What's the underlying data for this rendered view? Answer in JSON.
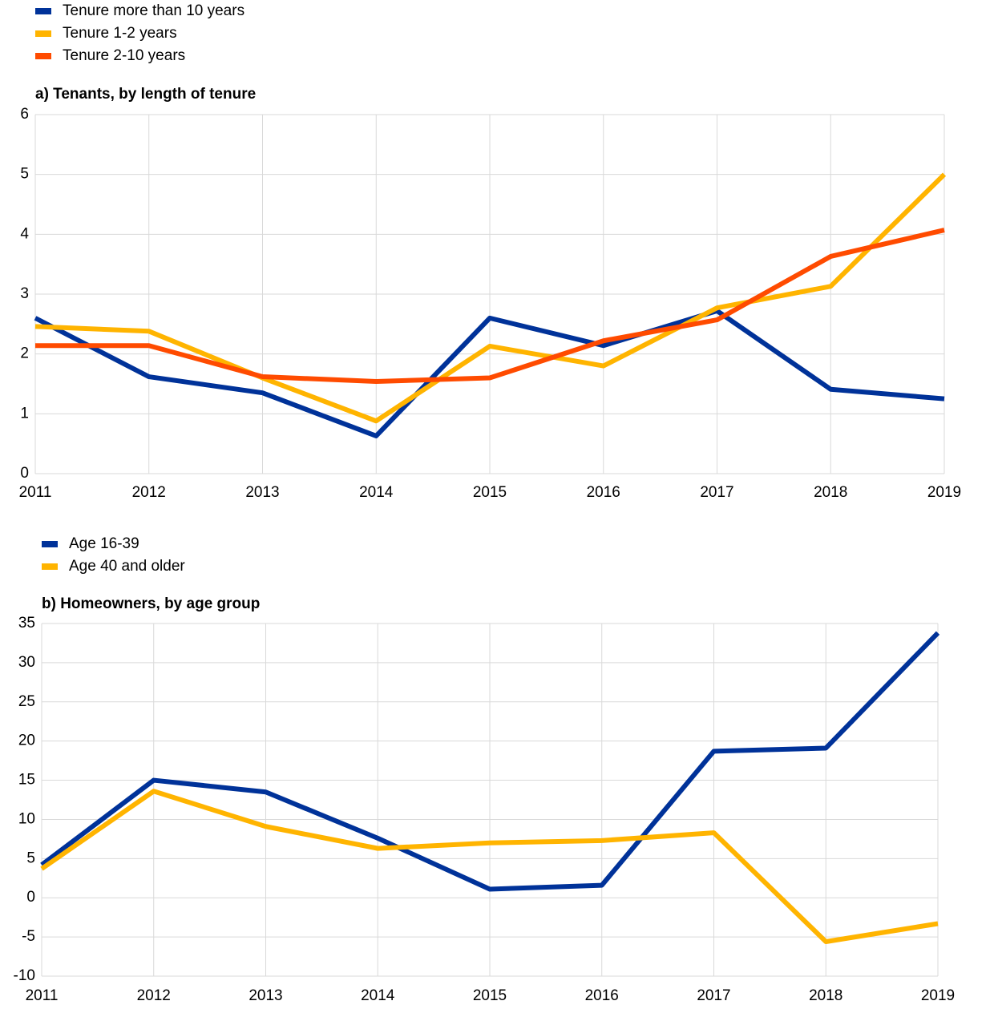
{
  "chart_data": [
    {
      "type": "line",
      "title": "a) Tenants, by length of tenure",
      "categories": [
        "2011",
        "2012",
        "2013",
        "2014",
        "2015",
        "2016",
        "2017",
        "2018",
        "2019"
      ],
      "ylim": [
        0,
        6
      ],
      "yticks": [
        0,
        1,
        2,
        3,
        4,
        5,
        6
      ],
      "grid": true,
      "series": [
        {
          "name": "Tenure more than 10 years",
          "color": "#003299",
          "values": [
            2.6,
            1.62,
            1.35,
            0.63,
            2.6,
            2.14,
            2.72,
            1.41,
            1.25
          ]
        },
        {
          "name": "Tenure 1-2 years",
          "color": "#ffb400",
          "values": [
            2.46,
            2.38,
            1.6,
            0.88,
            2.13,
            1.8,
            2.77,
            3.13,
            5.0
          ]
        },
        {
          "name": "Tenure 2-10 years",
          "color": "#ff4b00",
          "values": [
            2.14,
            2.14,
            1.62,
            1.54,
            1.6,
            2.22,
            2.57,
            3.63,
            4.07
          ]
        }
      ]
    },
    {
      "type": "line",
      "title": "b) Homeowners, by age group",
      "categories": [
        "2011",
        "2012",
        "2013",
        "2014",
        "2015",
        "2016",
        "2017",
        "2018",
        "2019"
      ],
      "ylim": [
        -10,
        35
      ],
      "yticks": [
        -10,
        -5,
        0,
        5,
        10,
        15,
        20,
        25,
        30,
        35
      ],
      "grid": true,
      "series": [
        {
          "name": "Age 16-39",
          "color": "#003299",
          "values": [
            4.2,
            15,
            13.5,
            7.6,
            1.1,
            1.6,
            18.7,
            19.1,
            33.8
          ]
        },
        {
          "name": "Age 40 and older",
          "color": "#ffb400",
          "values": [
            3.7,
            13.6,
            9.1,
            6.3,
            7.0,
            7.3,
            8.3,
            -5.6,
            -3.3
          ]
        }
      ]
    }
  ]
}
